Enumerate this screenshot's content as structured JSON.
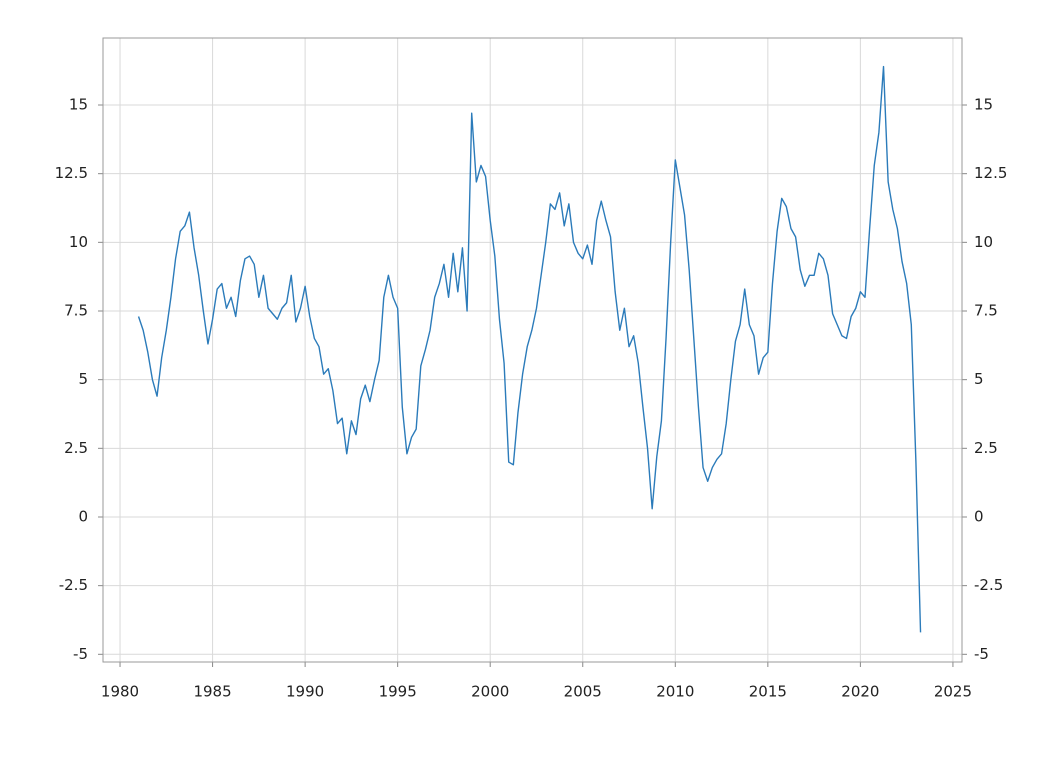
{
  "chart_data": {
    "type": "line",
    "x": [
      1981.0,
      1981.25,
      1981.5,
      1981.75,
      1982.0,
      1982.25,
      1982.5,
      1982.75,
      1983.0,
      1983.25,
      1983.5,
      1983.75,
      1984.0,
      1984.25,
      1984.5,
      1984.75,
      1985.0,
      1985.25,
      1985.5,
      1985.75,
      1986.0,
      1986.25,
      1986.5,
      1986.75,
      1987.0,
      1987.25,
      1987.5,
      1987.75,
      1988.0,
      1988.25,
      1988.5,
      1988.75,
      1989.0,
      1989.25,
      1989.5,
      1989.75,
      1990.0,
      1990.25,
      1990.5,
      1990.75,
      1991.0,
      1991.25,
      1991.5,
      1991.75,
      1992.0,
      1992.25,
      1992.5,
      1992.75,
      1993.0,
      1993.25,
      1993.5,
      1993.75,
      1994.0,
      1994.25,
      1994.5,
      1994.75,
      1995.0,
      1995.25,
      1995.5,
      1995.75,
      1996.0,
      1996.25,
      1996.5,
      1996.75,
      1997.0,
      1997.25,
      1997.5,
      1997.75,
      1998.0,
      1998.25,
      1998.5,
      1998.75,
      1999.0,
      1999.25,
      1999.5,
      1999.75,
      2000.0,
      2000.25,
      2000.5,
      2000.75,
      2001.0,
      2001.25,
      2001.5,
      2001.75,
      2002.0,
      2002.25,
      2002.5,
      2002.75,
      2003.0,
      2003.25,
      2003.5,
      2003.75,
      2004.0,
      2004.25,
      2004.5,
      2004.75,
      2005.0,
      2005.25,
      2005.5,
      2005.75,
      2006.0,
      2006.25,
      2006.5,
      2006.75,
      2007.0,
      2007.25,
      2007.5,
      2007.75,
      2008.0,
      2008.25,
      2008.5,
      2008.75,
      2009.0,
      2009.25,
      2009.5,
      2009.75,
      2010.0,
      2010.25,
      2010.5,
      2010.75,
      2011.0,
      2011.25,
      2011.5,
      2011.75,
      2012.0,
      2012.25,
      2012.5,
      2012.75,
      2013.0,
      2013.25,
      2013.5,
      2013.75,
      2014.0,
      2014.25,
      2014.5,
      2014.75,
      2015.0,
      2015.25,
      2015.5,
      2015.75,
      2016.0,
      2016.25,
      2016.5,
      2016.75,
      2017.0,
      2017.25,
      2017.5,
      2017.75,
      2018.0,
      2018.25,
      2018.5,
      2018.75,
      2019.0,
      2019.25,
      2019.5,
      2019.75,
      2020.0,
      2020.25,
      2020.5,
      2020.75,
      2021.0,
      2021.25,
      2021.5,
      2021.75,
      2022.0,
      2022.25,
      2022.5,
      2022.75,
      2023.0,
      2023.25
    ],
    "series": [
      {
        "color": "#2b7bba",
        "values": [
          7.3,
          6.8,
          6.0,
          5.0,
          4.4,
          5.8,
          6.8,
          8.0,
          9.4,
          10.4,
          10.6,
          11.1,
          9.8,
          8.8,
          7.5,
          6.3,
          7.2,
          8.3,
          8.5,
          7.6,
          8.0,
          7.3,
          8.6,
          9.4,
          9.5,
          9.2,
          8.0,
          8.8,
          7.6,
          7.4,
          7.2,
          7.6,
          7.8,
          8.8,
          7.1,
          7.6,
          8.4,
          7.3,
          6.5,
          6.2,
          5.2,
          5.4,
          4.6,
          3.4,
          3.6,
          2.3,
          3.5,
          3.0,
          4.3,
          4.8,
          4.2,
          5.0,
          5.7,
          8.0,
          8.8,
          8.0,
          7.6,
          4.0,
          2.3,
          2.9,
          3.2,
          5.5,
          6.1,
          6.8,
          8.0,
          8.5,
          9.2,
          8.0,
          9.6,
          8.2,
          9.8,
          7.5,
          14.7,
          12.2,
          12.8,
          12.4,
          10.8,
          9.5,
          7.2,
          5.6,
          2.0,
          1.9,
          3.8,
          5.2,
          6.2,
          6.8,
          7.6,
          8.8,
          10.0,
          11.4,
          11.2,
          11.8,
          10.6,
          11.4,
          10.0,
          9.6,
          9.4,
          9.9,
          9.2,
          10.8,
          11.5,
          10.8,
          10.2,
          8.2,
          6.8,
          7.6,
          6.2,
          6.6,
          5.6,
          4.0,
          2.5,
          0.3,
          2.2,
          3.5,
          6.5,
          10.0,
          13.0,
          12.0,
          11.0,
          9.0,
          6.5,
          4.0,
          1.8,
          1.3,
          1.8,
          2.1,
          2.3,
          3.4,
          5.0,
          6.4,
          7.0,
          8.3,
          7.0,
          6.6,
          5.2,
          5.8,
          6.0,
          8.5,
          10.4,
          11.6,
          11.3,
          10.5,
          10.2,
          9.0,
          8.4,
          8.8,
          8.8,
          9.6,
          9.4,
          8.8,
          7.4,
          7.0,
          6.6,
          6.5,
          7.3,
          7.6,
          8.2,
          8.0,
          10.5,
          12.8,
          14.0,
          16.4,
          12.2,
          11.2,
          10.5,
          9.3,
          8.5,
          7.0,
          2.0,
          -4.2
        ]
      }
    ],
    "xlim": [
      1979.08,
      2025.49
    ],
    "xticks": [
      1980,
      1985,
      1990,
      1995,
      2000,
      2005,
      2010,
      2015,
      2020,
      2025
    ],
    "ylim": [
      -5.28,
      17.44
    ],
    "yticks": [
      -5,
      -2.5,
      0,
      2.5,
      5,
      7.5,
      10,
      12.5,
      15
    ],
    "grid": true
  }
}
